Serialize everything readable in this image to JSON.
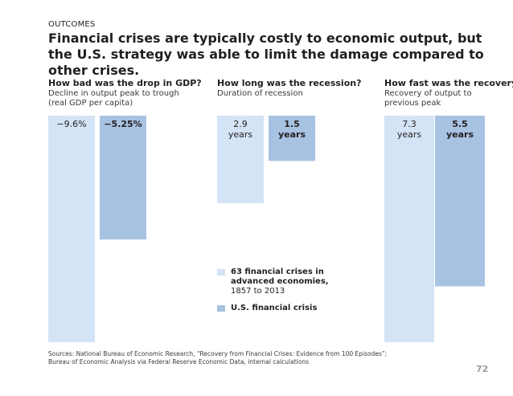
{
  "eyebrow": "OUTCOMES",
  "headline": "Financial crises are typically costly to economic output, but the U.S. strategy was able to limit the damage compared to other crises.",
  "colors": {
    "other_crises": "#d4e4f6",
    "us_crisis": "#a8c2e2"
  },
  "legend": {
    "other_crises_line1": "63 financial crises in",
    "other_crises_line2": "advanced economies,",
    "other_crises_line3": "1857 to 2013",
    "us_crisis": "U.S. financial crisis"
  },
  "sources": "Sources: National Bureau of Economic Research, “Recovery from Financial Crises: Evidence from 100 Episodes”; Bureau of Economic Analysis via Federal Reserve Economic Data, internal calculations",
  "page_number": "72",
  "chart_data": [
    {
      "type": "bar",
      "title": "How bad was the drop in GDP?",
      "subtitle_line1": "Decline in output peak to trough",
      "subtitle_line2": "(real GDP per capita)",
      "categories": [
        "63 financial crises in advanced economies, 1857 to 2013",
        "U.S. financial crisis"
      ],
      "values": [
        -9.6,
        -5.25
      ],
      "labels": [
        {
          "line1": "−9.6%",
          "line2": ""
        },
        {
          "line1": "−5.25%",
          "line2": ""
        }
      ],
      "ylim": [
        0,
        -9.6
      ]
    },
    {
      "type": "bar",
      "title": "How long was the recession?",
      "subtitle_line1": "Duration of recession",
      "subtitle_line2": "",
      "categories": [
        "63 financial crises in advanced economies, 1857 to 2013",
        "U.S. financial crisis"
      ],
      "values": [
        2.9,
        1.5
      ],
      "labels": [
        {
          "line1": "2.9",
          "line2": "years"
        },
        {
          "line1": "1.5",
          "line2": "years"
        }
      ],
      "ylim": [
        0,
        2.9
      ]
    },
    {
      "type": "bar",
      "title": "How fast was the recovery?",
      "subtitle_line1": "Recovery of output to",
      "subtitle_line2": "previous peak",
      "categories": [
        "63 financial crises in advanced economies, 1857 to 2013",
        "U.S. financial crisis"
      ],
      "values": [
        7.3,
        5.5
      ],
      "labels": [
        {
          "line1": "7.3",
          "line2": "years"
        },
        {
          "line1": "5.5",
          "line2": "years"
        }
      ],
      "ylim": [
        0,
        7.3
      ]
    }
  ]
}
